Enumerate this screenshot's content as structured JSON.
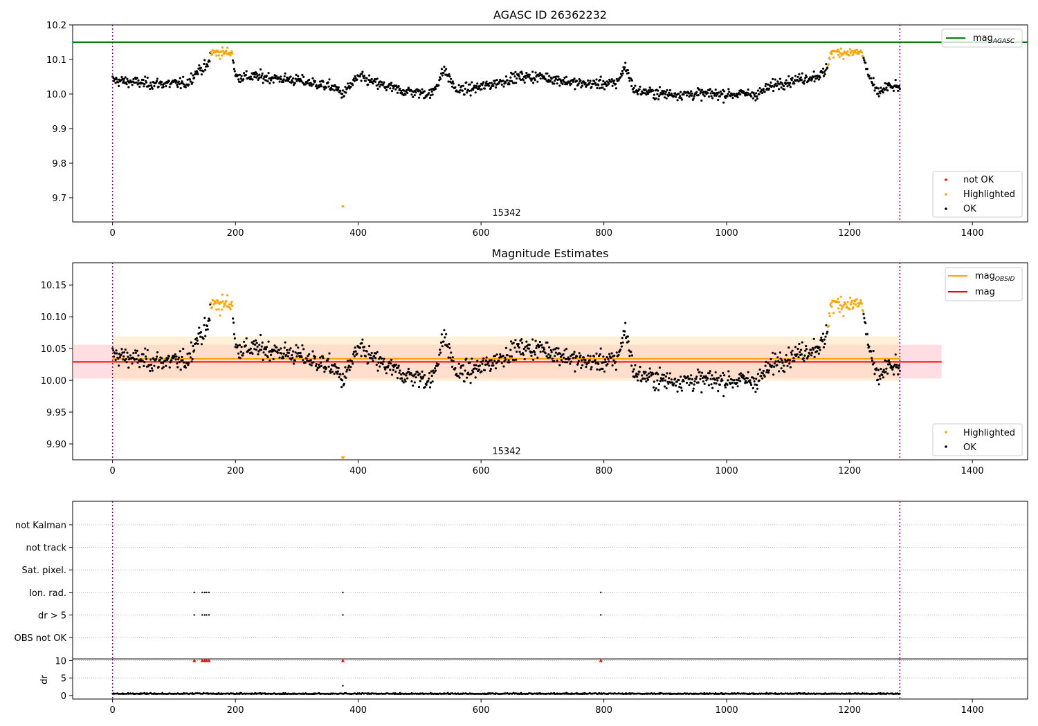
{
  "figure": {
    "title": "AGASC ID 26362232",
    "xticks": [
      0,
      200,
      400,
      600,
      800,
      1000,
      1200,
      1400
    ],
    "xlim": [
      -65,
      1490
    ],
    "obs_boundaries": [
      0,
      1282
    ],
    "colors": {
      "ok": "#000000",
      "highlighted": "#ffa500",
      "not_ok": "#ff0000",
      "agasc_line": "#008000",
      "mag_line": "#ff0000",
      "mag_obsid_line": "#ffa500",
      "boundary": "#800080",
      "band_mag": "#ffb6c1",
      "band_obsid": "#ffdead"
    }
  },
  "chart_data": [
    {
      "type": "scatter",
      "title": "AGASC ID 26362232",
      "ylim": [
        9.63,
        10.2
      ],
      "yticks": [
        9.7,
        9.8,
        9.9,
        10.0,
        10.1,
        10.2
      ],
      "ytick_labels": [
        "9.7",
        "9.8",
        "9.9",
        "10.0",
        "10.1",
        "10.2"
      ],
      "obsid_label": "15342",
      "hlines": [
        {
          "name": "mag_AGASC",
          "y": 10.15,
          "color": "#008000"
        }
      ],
      "legend_lines": [
        {
          "label": "mag",
          "sub": "AGASC",
          "color": "#008000"
        }
      ],
      "legend_points": [
        {
          "label": "not OK",
          "color": "#ff0000"
        },
        {
          "label": "Highlighted",
          "color": "#ffa500"
        },
        {
          "label": "OK",
          "color": "#000000"
        }
      ],
      "outliers": [
        {
          "x": 375,
          "y": 9.675,
          "color": "#ffa500"
        }
      ],
      "series": [
        {
          "x_range": [
            0,
            1282
          ],
          "anchors": [
            [
              0,
              10.04
            ],
            [
              60,
              10.03
            ],
            [
              120,
              10.03
            ],
            [
              140,
              10.07
            ],
            [
              155,
              10.08
            ],
            [
              160,
              10.12
            ],
            [
              195,
              10.12
            ],
            [
              200,
              10.05
            ],
            [
              240,
              10.05
            ],
            [
              300,
              10.04
            ],
            [
              360,
              10.02
            ],
            [
              375,
              10.0
            ],
            [
              400,
              10.05
            ],
            [
              430,
              10.03
            ],
            [
              470,
              10.01
            ],
            [
              520,
              10.0
            ],
            [
              540,
              10.07
            ],
            [
              560,
              10.01
            ],
            [
              600,
              10.02
            ],
            [
              660,
              10.05
            ],
            [
              700,
              10.05
            ],
            [
              760,
              10.03
            ],
            [
              820,
              10.03
            ],
            [
              835,
              10.08
            ],
            [
              850,
              10.01
            ],
            [
              900,
              10.0
            ],
            [
              950,
              10.0
            ],
            [
              1000,
              10.0
            ],
            [
              1050,
              10.0
            ],
            [
              1080,
              10.03
            ],
            [
              1140,
              10.05
            ],
            [
              1160,
              10.06
            ],
            [
              1170,
              10.12
            ],
            [
              1220,
              10.12
            ],
            [
              1230,
              10.06
            ],
            [
              1245,
              10.0
            ],
            [
              1260,
              10.02
            ],
            [
              1282,
              10.02
            ]
          ]
        }
      ]
    },
    {
      "type": "scatter",
      "title": "Magnitude Estimates",
      "ylim": [
        9.875,
        10.185
      ],
      "yticks": [
        9.9,
        9.95,
        10.0,
        10.05,
        10.1,
        10.15
      ],
      "ytick_labels": [
        "9.90",
        "9.95",
        "10.00",
        "10.05",
        "10.10",
        "10.15"
      ],
      "obsid_label": "15342",
      "hlines": [
        {
          "name": "mag_OBSID",
          "y": 10.034,
          "color": "#ffa500"
        },
        {
          "name": "mag",
          "y": 10.029,
          "color": "#ff0000"
        }
      ],
      "bands": [
        {
          "name": "mag_band",
          "x_range": [
            -65,
            1350
          ],
          "y_range": [
            10.003,
            10.056
          ],
          "color": "#ffb6c1"
        },
        {
          "name": "obsid_band",
          "x_range": [
            0,
            1282
          ],
          "y_range": [
            9.999,
            10.069
          ],
          "color": "#ffdead"
        }
      ],
      "legend_lines": [
        {
          "label": "mag",
          "sub": "OBSID",
          "color": "#ffa500"
        },
        {
          "label": "mag",
          "sub": "",
          "color": "#ff0000"
        }
      ],
      "legend_points": [
        {
          "label": "Highlighted",
          "color": "#ffa500"
        },
        {
          "label": "OK",
          "color": "#000000"
        }
      ],
      "outliers": [
        {
          "x": 375,
          "y": 9.877,
          "color": "#ffa500",
          "marker": "triangle-down"
        }
      ]
    },
    {
      "type": "scatter",
      "title": "",
      "flag_rows": [
        "not Kalman",
        "not track",
        "Sat. pixel.",
        "Ion. rad.",
        "dr > 5",
        "OBS not OK"
      ],
      "flag_points": {
        "Ion. rad.": [
          133,
          146,
          150,
          153,
          157,
          375,
          795
        ],
        "dr > 5": [
          133,
          146,
          150,
          153,
          157,
          375,
          795
        ]
      }
    },
    {
      "type": "scatter",
      "title": "",
      "ylabel": "dr",
      "ylim": [
        -1,
        10.5
      ],
      "yticks": [
        0,
        5,
        10
      ],
      "ytick_labels": [
        "0",
        "5",
        "10"
      ],
      "clipped_markers": [
        133,
        146,
        150,
        153,
        157,
        375,
        795
      ],
      "extra_points": [
        {
          "x": 375,
          "y": 2.8
        }
      ]
    }
  ]
}
